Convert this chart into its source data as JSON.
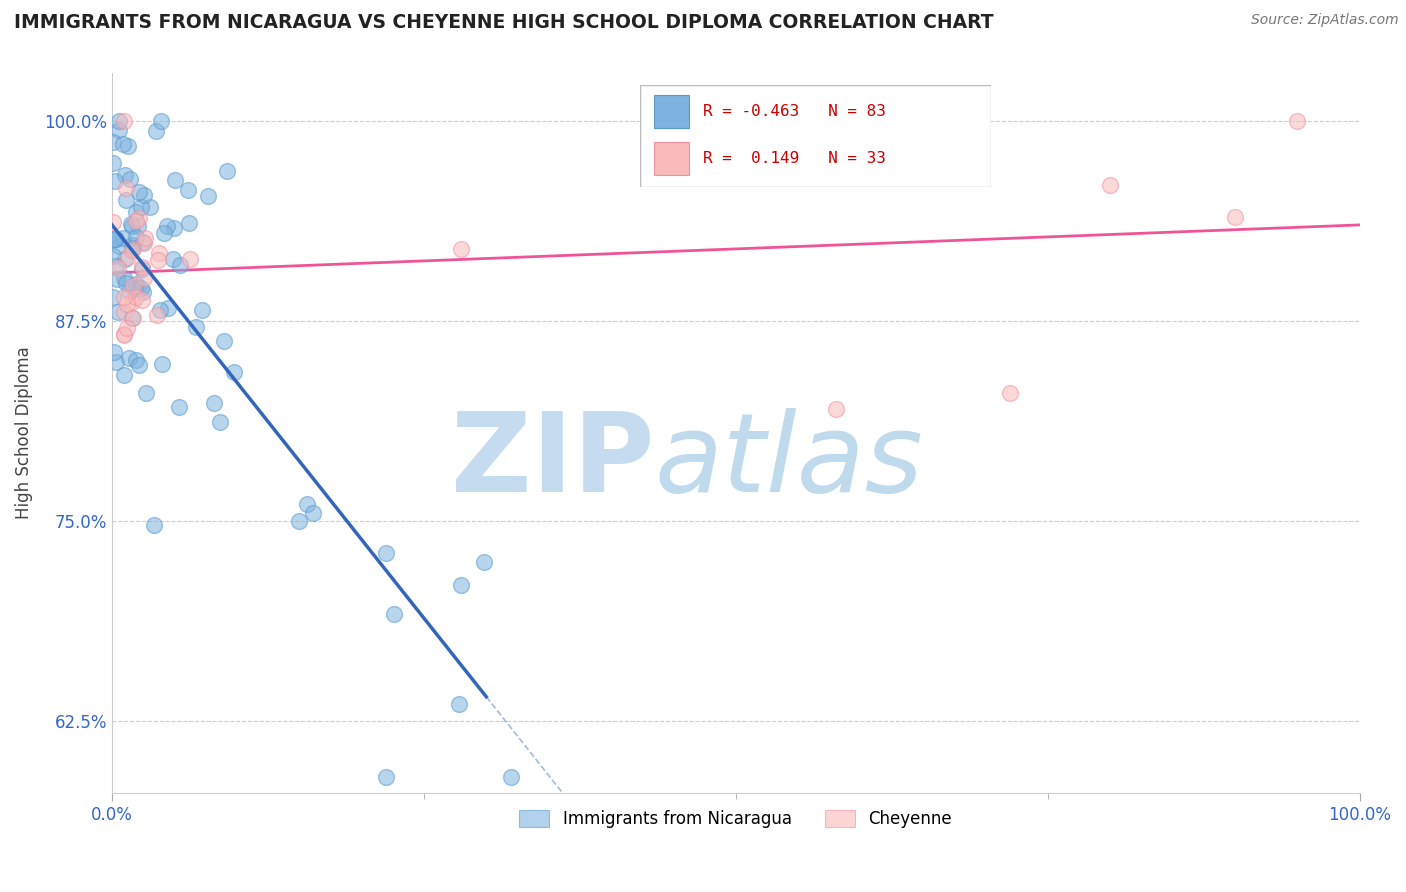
{
  "title": "IMMIGRANTS FROM NICARAGUA VS CHEYENNE HIGH SCHOOL DIPLOMA CORRELATION CHART",
  "source": "Source: ZipAtlas.com",
  "ylabel": "High School Diploma",
  "legend_blue_label": "Immigrants from Nicaragua",
  "legend_pink_label": "Cheyenne",
  "blue_R": -0.463,
  "blue_N": 83,
  "pink_R": 0.149,
  "pink_N": 33,
  "blue_color": "#7EB3E0",
  "blue_edge_color": "#5A9ACC",
  "pink_color": "#F9BABA",
  "pink_edge_color": "#F090A0",
  "blue_line_color": "#3366BB",
  "pink_line_color": "#EE5599",
  "watermark_zip_color": "#C5DCF0",
  "watermark_atlas_color": "#B8D5EC",
  "xlim": [
    0.0,
    100.0
  ],
  "ylim": [
    58.0,
    103.0
  ],
  "yticks": [
    62.5,
    75.0,
    87.5,
    100.0
  ],
  "blue_trend_x0": 0,
  "blue_trend_y0": 93.5,
  "blue_trend_x1": 30,
  "blue_trend_y1": 64.0,
  "pink_trend_x0": 0,
  "pink_trend_y0": 90.5,
  "pink_trend_x1": 100,
  "pink_trend_y1": 93.5,
  "blue_solid_end_x": 30,
  "blue_solid_end_y": 64.0
}
